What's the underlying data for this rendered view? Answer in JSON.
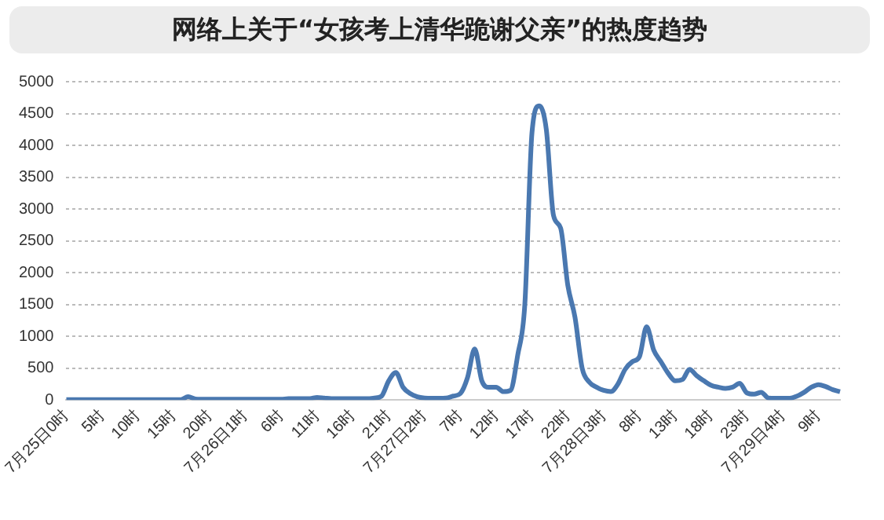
{
  "chart_data": {
    "type": "line",
    "title": "网络上关于“女孩考上清华跪谢父亲”的热度趋势",
    "categories": [
      "7月25日0时",
      null,
      null,
      null,
      null,
      "5时",
      null,
      null,
      null,
      null,
      "10时",
      null,
      null,
      null,
      null,
      "15时",
      null,
      null,
      null,
      null,
      "20时",
      null,
      null,
      null,
      null,
      "7月26日1时",
      null,
      null,
      null,
      null,
      "6时",
      null,
      null,
      null,
      null,
      "11时",
      null,
      null,
      null,
      null,
      "16时",
      null,
      null,
      null,
      null,
      "21时",
      null,
      null,
      null,
      null,
      "7月27日2时",
      null,
      null,
      null,
      null,
      "7时",
      null,
      null,
      null,
      null,
      "12时",
      null,
      null,
      null,
      null,
      "17时",
      null,
      null,
      null,
      null,
      "22时",
      null,
      null,
      null,
      null,
      "7月28日3时",
      null,
      null,
      null,
      null,
      "8时",
      null,
      null,
      null,
      null,
      "13时",
      null,
      null,
      null,
      null,
      "18时",
      null,
      null,
      null,
      null,
      "23时",
      null,
      null,
      null,
      null,
      "7月29日4时",
      null,
      null,
      null,
      null,
      "9时",
      null,
      null,
      null
    ],
    "series": [
      {
        "color": "#4a78b0",
        "values": [
          5,
          5,
          5,
          5,
          5,
          5,
          5,
          5,
          5,
          5,
          5,
          5,
          5,
          5,
          5,
          5,
          5,
          50,
          15,
          10,
          10,
          10,
          10,
          10,
          10,
          10,
          10,
          10,
          10,
          10,
          10,
          20,
          20,
          20,
          20,
          40,
          30,
          20,
          20,
          20,
          20,
          20,
          20,
          30,
          60,
          300,
          430,
          200,
          100,
          50,
          30,
          25,
          25,
          30,
          60,
          100,
          350,
          800,
          300,
          200,
          200,
          130,
          150,
          700,
          1500,
          4200,
          4620,
          4250,
          2900,
          2700,
          1800,
          1300,
          500,
          280,
          200,
          150,
          130,
          250,
          480,
          600,
          680,
          1150,
          780,
          600,
          420,
          300,
          320,
          480,
          380,
          300,
          230,
          200,
          180,
          200,
          260,
          110,
          90,
          120,
          30,
          25,
          25,
          25,
          60,
          120,
          200,
          240,
          210,
          160,
          130
        ]
      }
    ],
    "ylim": [
      0,
      5000
    ],
    "yticks": [
      0,
      500,
      1000,
      1500,
      2000,
      2500,
      3000,
      3500,
      4000,
      4500,
      5000
    ],
    "grid": "y",
    "legend": false,
    "marker": "none",
    "line_style": "solid"
  }
}
